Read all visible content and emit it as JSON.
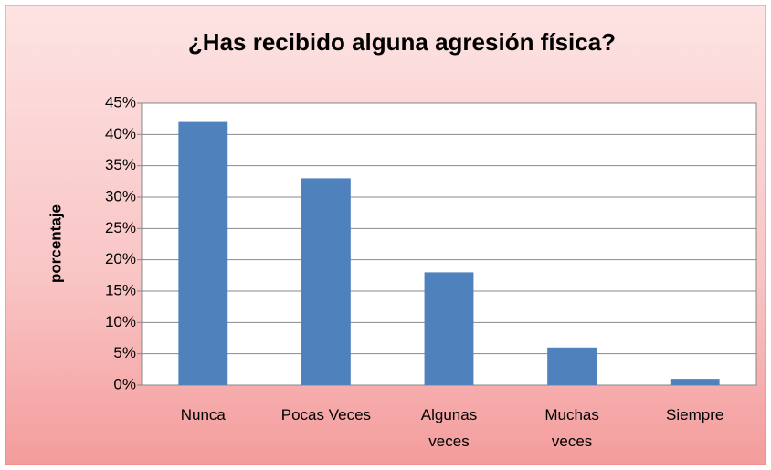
{
  "chart_data": {
    "type": "bar",
    "title": "¿Has recibido alguna agresión física?",
    "ylabel": "porcentaje",
    "categories": [
      "Nunca",
      "Pocas Veces",
      "Algunas veces",
      "Muchas veces",
      "Siempre"
    ],
    "values": [
      42,
      33,
      18,
      6,
      1
    ],
    "color": "#4f81bd",
    "ylim": [
      0,
      45
    ],
    "yticks": [
      {
        "value": 0,
        "label": "0%"
      },
      {
        "value": 5,
        "label": "5%"
      },
      {
        "value": 10,
        "label": "10%"
      },
      {
        "value": 15,
        "label": "15%"
      },
      {
        "value": 20,
        "label": "20%"
      },
      {
        "value": 25,
        "label": "25%"
      },
      {
        "value": 30,
        "label": "30%"
      },
      {
        "value": 35,
        "label": "35%"
      },
      {
        "value": 40,
        "label": "40%"
      },
      {
        "value": 45,
        "label": "45%"
      }
    ],
    "grid": true
  }
}
